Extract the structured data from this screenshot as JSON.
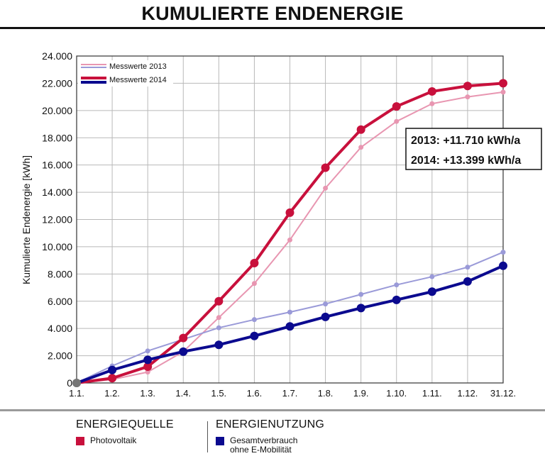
{
  "title": "KUMULIERTE ENDENERGIE",
  "colors": {
    "pv_2014": "#c8103c",
    "pv_2013": "#e896b1",
    "use_2014": "#0b0a8f",
    "use_2013": "#9a9ad8"
  },
  "chart_data": {
    "type": "line",
    "ylabel": "Kumulierte Endenergie [kWh]",
    "xlabel": "",
    "x": [
      "1.1.",
      "1.2.",
      "1.3.",
      "1.4.",
      "1.5.",
      "1.6.",
      "1.7.",
      "1.8.",
      "1.9.",
      "1.10.",
      "1.11.",
      "1.12.",
      "31.12."
    ],
    "yticks": [
      "0",
      "2.000",
      "4.000",
      "6.000",
      "8.000",
      "10.000",
      "12.000",
      "14.000",
      "16.000",
      "18.000",
      "20.000",
      "22.000",
      "24.000"
    ],
    "ylim": [
      0,
      24000
    ],
    "grid": true,
    "series": [
      {
        "name": "Photovoltaik",
        "year": "2013",
        "values": [
          0,
          250,
          800,
          2300,
          4800,
          7300,
          10500,
          14300,
          17300,
          19200,
          20500,
          21000,
          21350
        ]
      },
      {
        "name": "Gesamtverbrauch ohne E-Mobilität",
        "year": "2013",
        "values": [
          0,
          1250,
          2350,
          3200,
          4050,
          4650,
          5200,
          5800,
          6500,
          7200,
          7800,
          8500,
          9600
        ]
      },
      {
        "name": "Photovoltaik",
        "year": "2014",
        "values": [
          0,
          350,
          1200,
          3300,
          6000,
          8800,
          12500,
          15800,
          18600,
          20300,
          21400,
          21800,
          22000
        ]
      },
      {
        "name": "Gesamtverbrauch ohne E-Mobilität",
        "year": "2014",
        "values": [
          0,
          950,
          1700,
          2300,
          2800,
          3450,
          4150,
          4850,
          5500,
          6100,
          6700,
          7450,
          8600
        ]
      }
    ],
    "chart_legend": [
      "Messwerte 2013",
      "Messwerte 2014"
    ],
    "annotations": [
      "2013: +11.710 kWh/a",
      "2014: +13.399 kWh/a"
    ]
  },
  "legend": {
    "source_heading": "ENERGIEQUELLE",
    "source_label": "Photovoltaik",
    "use_heading": "ENERGIENUTZUNG",
    "use_label_1": "Gesamtverbrauch",
    "use_label_2": "ohne E-Mobilität"
  }
}
